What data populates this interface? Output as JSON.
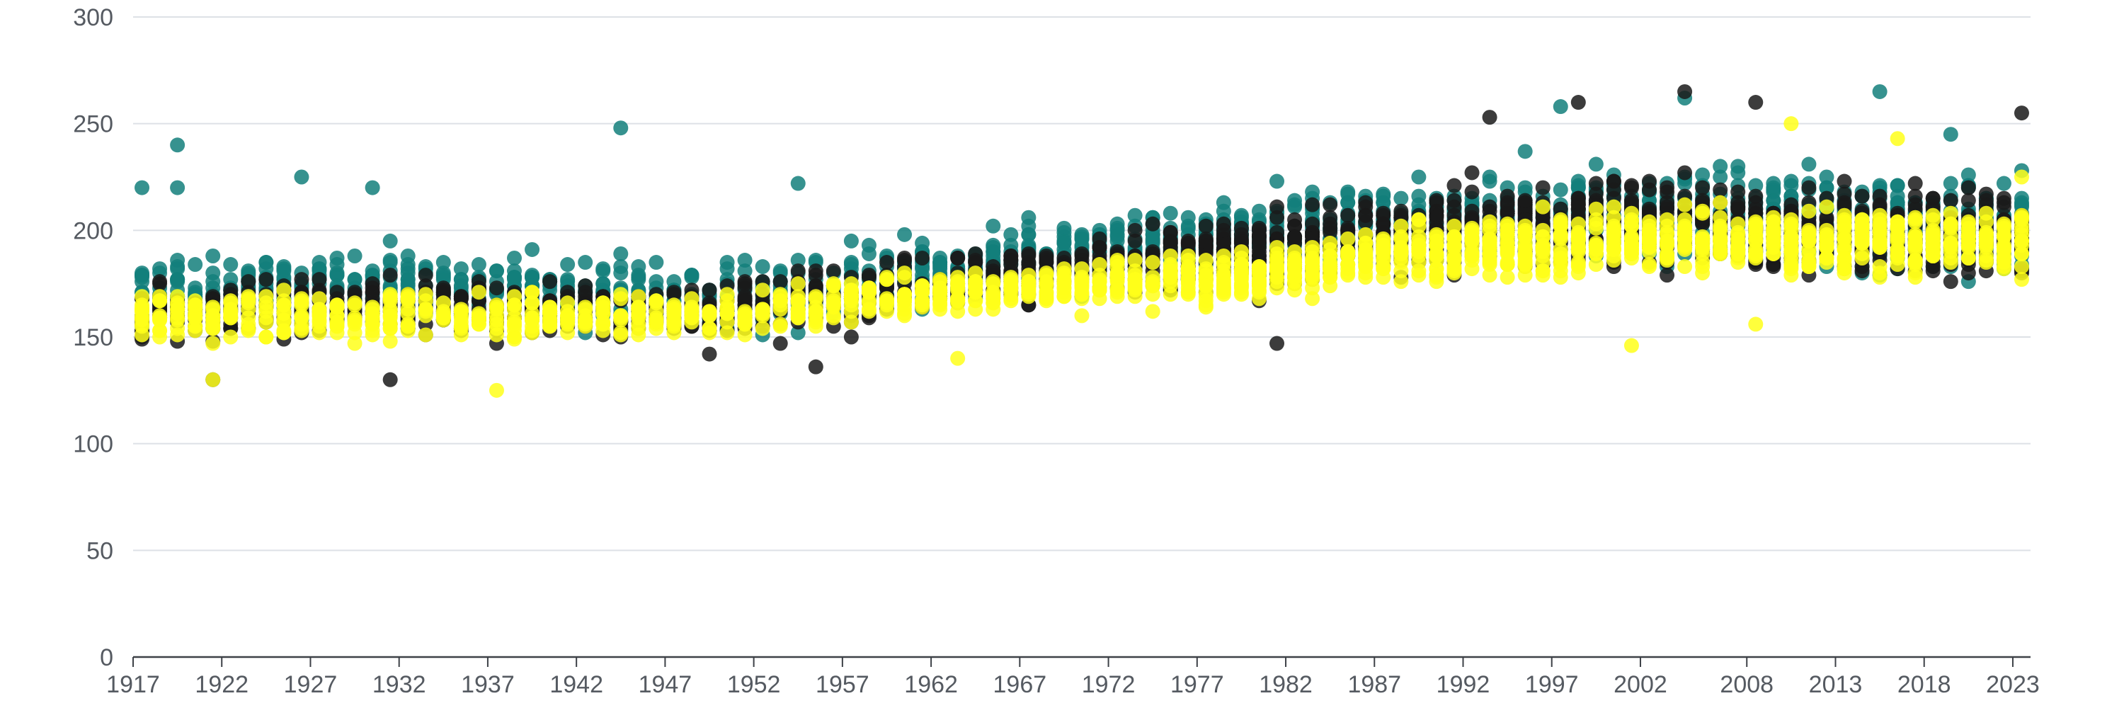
{
  "chart_data": {
    "type": "scatter",
    "title": "",
    "xlabel": "",
    "ylabel": "",
    "xlim": [
      1917,
      2024
    ],
    "ylim": [
      0,
      300
    ],
    "grid": true,
    "legend": "none",
    "y_ticks": [
      "0",
      "50",
      "100",
      "150",
      "200",
      "250",
      "300"
    ],
    "x_ticks": [
      "1917",
      "1922",
      "1927",
      "1932",
      "1937",
      "1942",
      "1947",
      "1952",
      "1957",
      "1962",
      "1967",
      "1972",
      "1977",
      "1982",
      "1987",
      "1992",
      "1997",
      "2002",
      "2008",
      "2013",
      "2018",
      "2023"
    ],
    "colors": {
      "teal": "#137f7b",
      "black": "#1a1a1a",
      "yellow": "#ffff1a"
    },
    "series": [
      {
        "color_key": "teal",
        "trend": [
          [
            1917,
            170
          ],
          [
            1930,
            175
          ],
          [
            1950,
            168
          ],
          [
            1960,
            180
          ],
          [
            1970,
            190
          ],
          [
            1980,
            197
          ],
          [
            1990,
            205
          ],
          [
            2000,
            208
          ],
          [
            2010,
            205
          ],
          [
            2023,
            200
          ]
        ],
        "spread": [
          [
            1917,
            22
          ],
          [
            1950,
            22
          ],
          [
            1970,
            22
          ],
          [
            1985,
            25
          ],
          [
            2000,
            30
          ],
          [
            2023,
            30
          ]
        ],
        "outliers": [
          [
            1917,
            220
          ],
          [
            1919,
            240
          ],
          [
            1919,
            220
          ],
          [
            1926,
            225
          ],
          [
            1930,
            220
          ],
          [
            1944,
            248
          ],
          [
            1954,
            222
          ],
          [
            1997,
            258
          ],
          [
            2004,
            262
          ],
          [
            2015,
            265
          ],
          [
            2019,
            245
          ],
          [
            2023,
            228
          ]
        ],
        "values": []
      },
      {
        "color_key": "black",
        "trend": [
          [
            1917,
            162
          ],
          [
            1930,
            165
          ],
          [
            1950,
            162
          ],
          [
            1960,
            175
          ],
          [
            1970,
            182
          ],
          [
            1980,
            190
          ],
          [
            1990,
            200
          ],
          [
            2000,
            205
          ],
          [
            2010,
            200
          ],
          [
            2023,
            197
          ]
        ],
        "spread": [
          [
            1917,
            18
          ],
          [
            1950,
            20
          ],
          [
            1970,
            20
          ],
          [
            1985,
            25
          ],
          [
            2000,
            28
          ],
          [
            2023,
            28
          ]
        ],
        "outliers": [
          [
            1919,
            148
          ],
          [
            1921,
            130
          ],
          [
            1931,
            130
          ],
          [
            1955,
            136
          ],
          [
            1981,
            147
          ],
          [
            1993,
            253
          ],
          [
            1998,
            260
          ],
          [
            2004,
            265
          ],
          [
            2008,
            260
          ],
          [
            2023,
            255
          ]
        ],
        "values": []
      },
      {
        "color_key": "yellow",
        "trend": [
          [
            1917,
            160
          ],
          [
            1930,
            160
          ],
          [
            1950,
            160
          ],
          [
            1960,
            170
          ],
          [
            1970,
            175
          ],
          [
            1980,
            180
          ],
          [
            1990,
            190
          ],
          [
            2000,
            195
          ],
          [
            2010,
            195
          ],
          [
            2023,
            195
          ]
        ],
        "spread": [
          [
            1917,
            15
          ],
          [
            1950,
            15
          ],
          [
            1970,
            15
          ],
          [
            1985,
            18
          ],
          [
            2000,
            22
          ],
          [
            2023,
            22
          ]
        ],
        "outliers": [
          [
            1937,
            125
          ],
          [
            1921,
            130
          ],
          [
            1963,
            140
          ],
          [
            2001,
            146
          ],
          [
            2008,
            156
          ],
          [
            2010,
            250
          ],
          [
            2016,
            243
          ],
          [
            2023,
            225
          ]
        ],
        "values": []
      }
    ]
  }
}
